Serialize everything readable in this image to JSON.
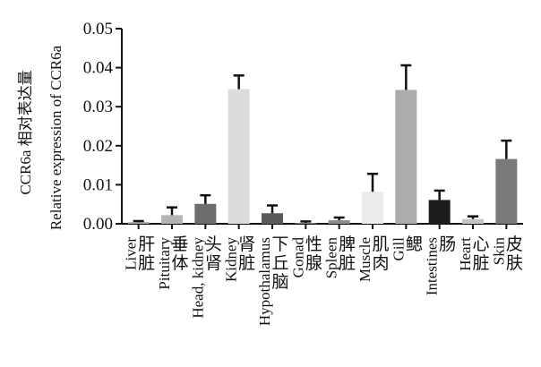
{
  "chart_data": {
    "type": "bar",
    "ylabel_cn": "CCR6a 相对表达量",
    "ylabel_en": "Relative expression of CCR6a",
    "ylim": [
      0,
      0.05
    ],
    "yticks": [
      "0.00",
      "0.01",
      "0.02",
      "0.03",
      "0.04",
      "0.05"
    ],
    "grid": false,
    "categories": [
      {
        "cn": [
          "肝",
          "脏"
        ],
        "en": "Liver"
      },
      {
        "cn": [
          "垂",
          "体"
        ],
        "en": "Pituitary"
      },
      {
        "cn": [
          "头",
          "肾"
        ],
        "en": "Head, kidney"
      },
      {
        "cn": [
          "肾",
          "脏"
        ],
        "en": "Kidney"
      },
      {
        "cn": [
          "下",
          "丘",
          "脑"
        ],
        "en": "Hypothalamus"
      },
      {
        "cn": [
          "性",
          "腺"
        ],
        "en": "Gonad"
      },
      {
        "cn": [
          "脾",
          "脏"
        ],
        "en": "Spleen"
      },
      {
        "cn": [
          "肌",
          "肉"
        ],
        "en": "Muscle"
      },
      {
        "cn": [
          "鳃"
        ],
        "en": "Gill"
      },
      {
        "cn": [
          "肠"
        ],
        "en": "Intestines"
      },
      {
        "cn": [
          "心",
          "脏"
        ],
        "en": "Heart"
      },
      {
        "cn": [
          "皮",
          "肤"
        ],
        "en": "Skin"
      }
    ],
    "values": [
      0.0004,
      0.0022,
      0.0051,
      0.0345,
      0.0027,
      0.0002,
      0.0009,
      0.0082,
      0.0343,
      0.0061,
      0.0012,
      0.0166
    ],
    "errors": [
      0.0003,
      0.002,
      0.0022,
      0.0035,
      0.002,
      0.0004,
      0.0007,
      0.0046,
      0.0063,
      0.0024,
      0.0007,
      0.0047
    ],
    "colors": [
      "#a0a0a0",
      "#b4b4b4",
      "#6d6d6d",
      "#dcdcdc",
      "#5a5a5a",
      "#7a7a7a",
      "#8c8c8c",
      "#ececec",
      "#acacac",
      "#1c1c1c",
      "#c4c4c4",
      "#7a7a7a"
    ]
  }
}
